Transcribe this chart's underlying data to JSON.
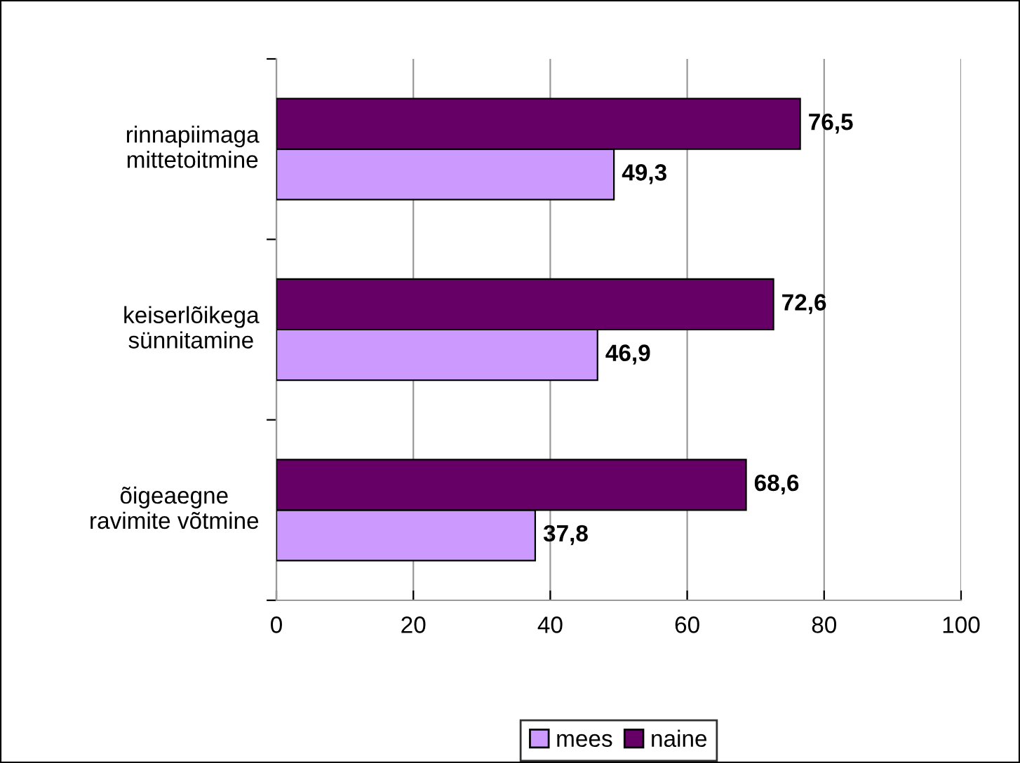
{
  "chart_data": {
    "type": "bar",
    "orientation": "horizontal",
    "categories": [
      "rinnapiimaga\nmittetoitmine",
      "keiserlõikega\nsünnitamine",
      "õigeaegne\nravimite võtmine"
    ],
    "series": [
      {
        "name": "mees",
        "color": "#cc99ff",
        "values": [
          49.3,
          46.9,
          37.8
        ],
        "value_labels": [
          "49,3",
          "46,9",
          "37,8"
        ]
      },
      {
        "name": "naine",
        "color": "#660066",
        "values": [
          76.5,
          72.6,
          68.6
        ],
        "value_labels": [
          "76,5",
          "72,6",
          "68,6"
        ]
      }
    ],
    "xlim": [
      0,
      100
    ],
    "xticks": [
      0,
      20,
      40,
      60,
      80,
      100
    ],
    "grid": "x",
    "legend": "bottom"
  }
}
